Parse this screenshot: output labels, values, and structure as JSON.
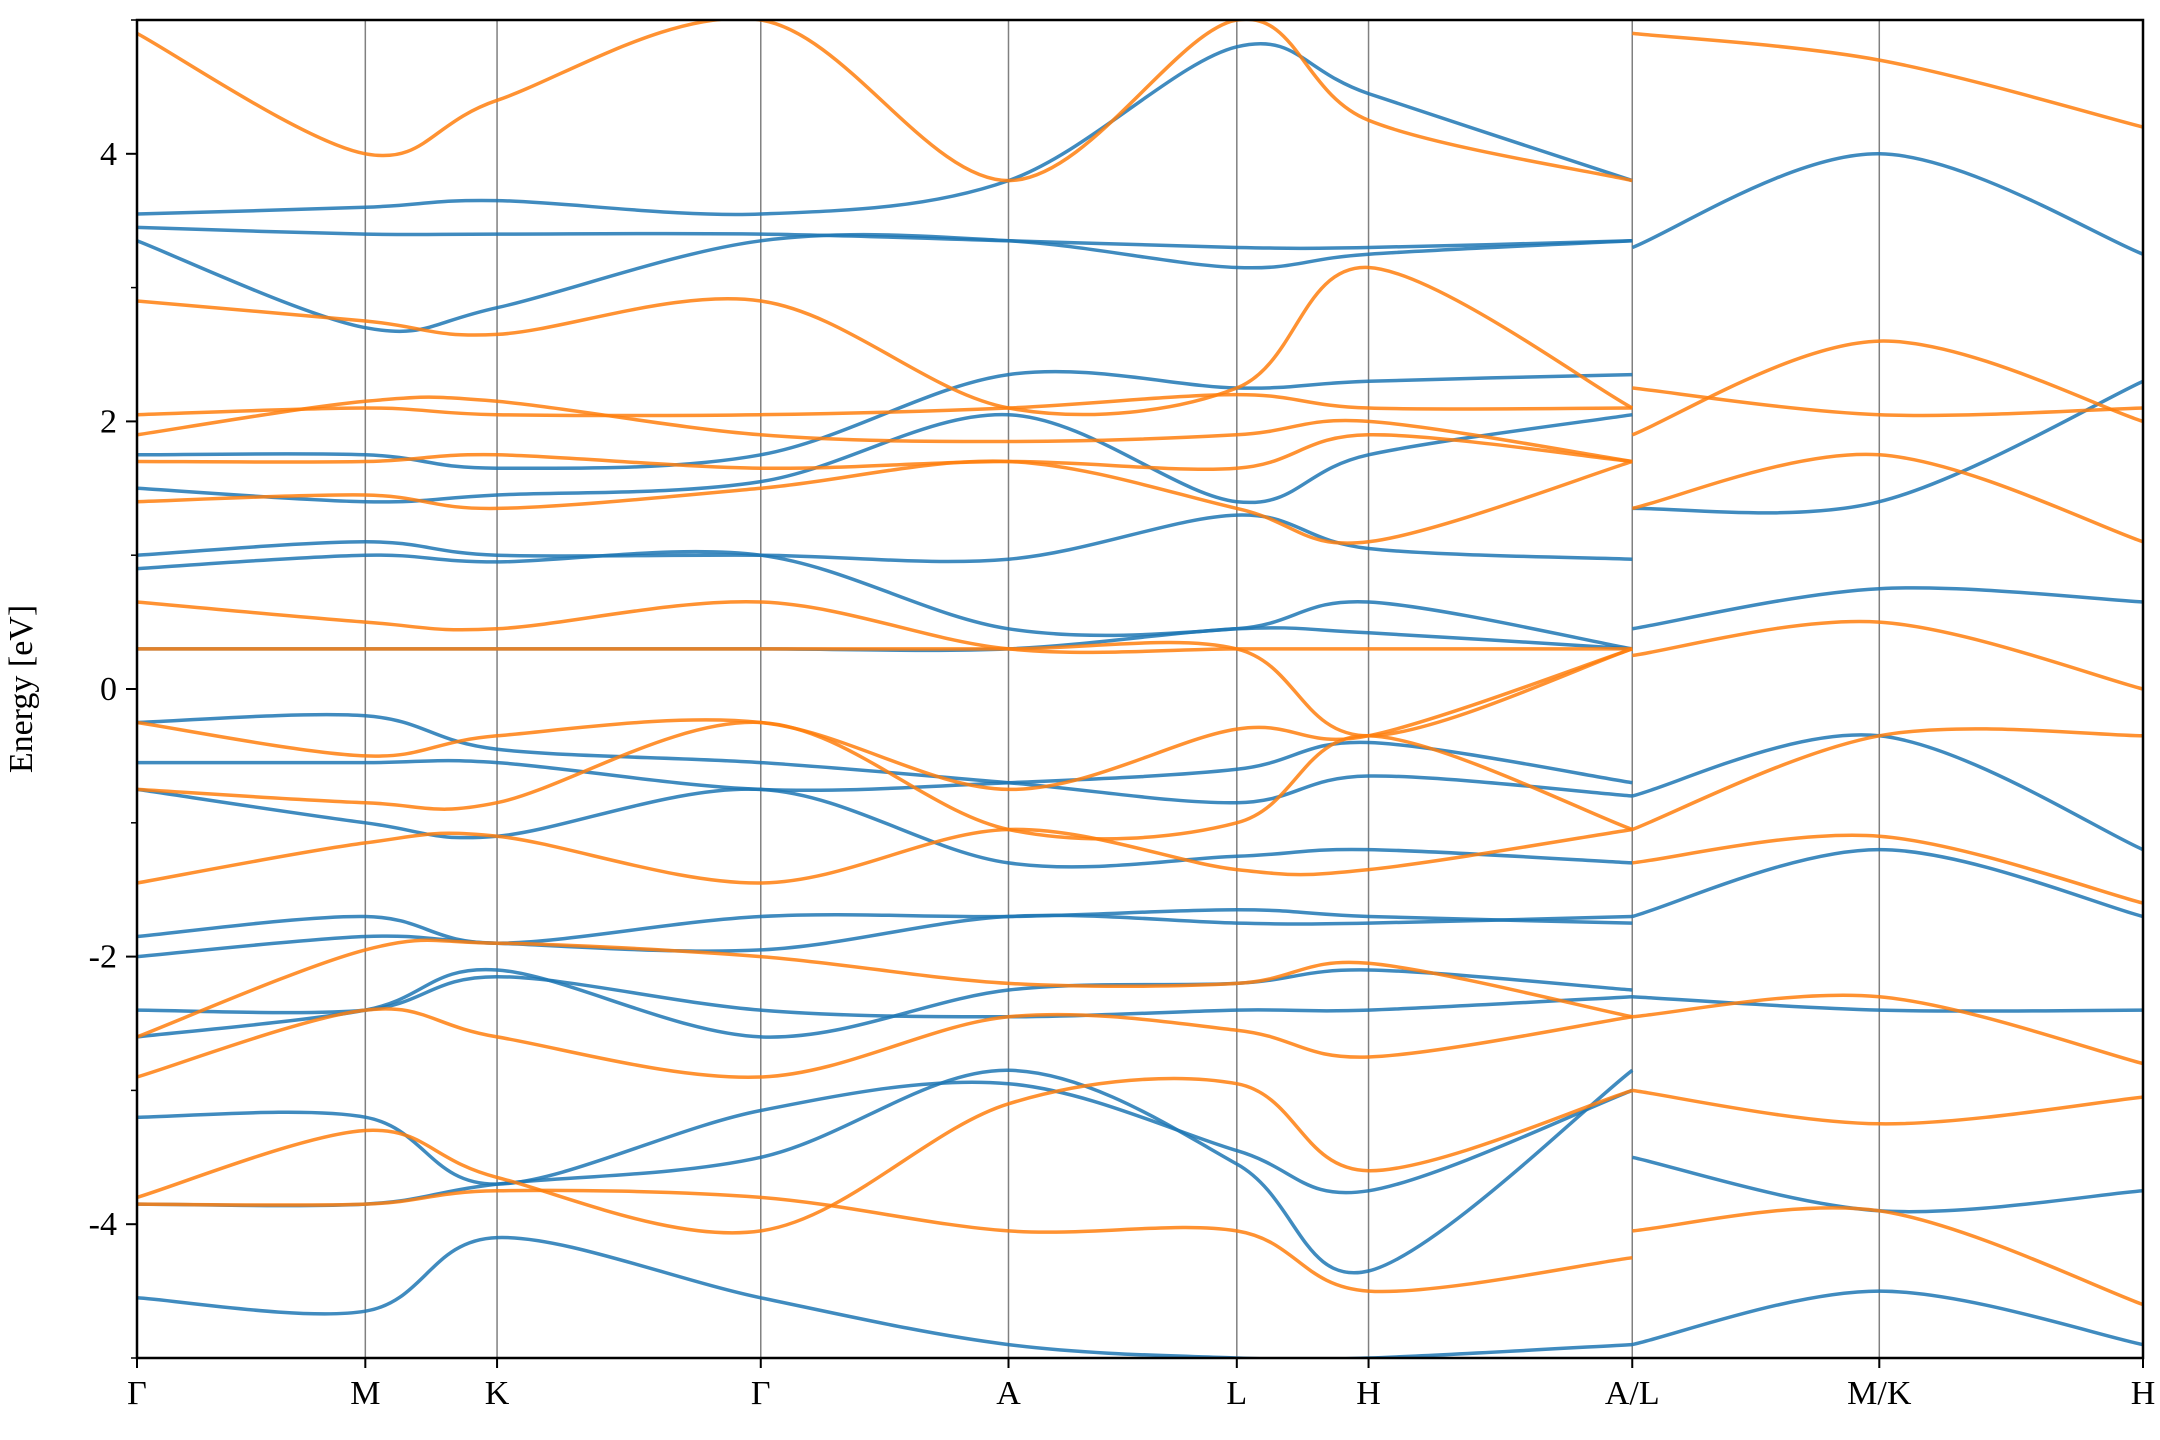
{
  "chart_data": {
    "type": "line",
    "title": "",
    "xlabel": "",
    "ylabel": "Energy [eV]",
    "ylim": [
      -5,
      5
    ],
    "y_ticks": [
      -4,
      -2,
      0,
      2,
      4
    ],
    "y_tick_labels": [
      "-4",
      "-2",
      "0",
      "2",
      "4"
    ],
    "x_ticks": [
      0,
      1,
      1.577,
      2.732,
      3.817,
      4.817,
      5.394,
      6.549,
      7.631,
      8.786
    ],
    "x_tick_labels": [
      "Γ",
      "M",
      "K",
      "Γ",
      "A",
      "L",
      "H",
      "A/L",
      "M/K",
      "H"
    ],
    "xlim": [
      0,
      8.786
    ],
    "grid": "vertical lines at high-symmetry points",
    "legend": "none",
    "colors": {
      "series_a": "#1f77b4",
      "series_b": "#ff7f0e",
      "axis": "#000000",
      "kpoint_line": "#808080"
    },
    "segments": [
      {
        "from": "Γ",
        "to": "M",
        "x_range": [
          0,
          1
        ]
      },
      {
        "from": "M",
        "to": "K",
        "x_range": [
          1,
          1.577
        ]
      },
      {
        "from": "K",
        "to": "Γ",
        "x_range": [
          1.577,
          2.732
        ]
      },
      {
        "from": "Γ",
        "to": "A",
        "x_range": [
          2.732,
          3.817
        ]
      },
      {
        "from": "A",
        "to": "L",
        "x_range": [
          3.817,
          4.817
        ]
      },
      {
        "from": "L",
        "to": "H",
        "x_range": [
          4.817,
          5.394
        ]
      },
      {
        "from": "H",
        "to": "A",
        "x_range": [
          5.394,
          6.549
        ]
      },
      {
        "from": "L",
        "to": "M",
        "x_range": [
          6.549,
          7.631
        ]
      },
      {
        "from": "K",
        "to": "H",
        "x_range": [
          7.631,
          8.786
        ]
      }
    ],
    "series": [
      {
        "color": "#1f77b4",
        "bands": [
          {
            "x": [
              0,
              1,
              1.577,
              2.732,
              3.817,
              4.817,
              5.394,
              6.549
            ],
            "y": [
              -4.55,
              -4.65,
              -4.1,
              -4.55,
              -4.9,
              -5.0,
              -5.0,
              -4.9
            ]
          },
          {
            "x": [
              0,
              1,
              1.577,
              2.732,
              3.817,
              4.817,
              5.394,
              6.549
            ],
            "y": [
              -3.85,
              -3.85,
              -3.7,
              -3.5,
              -2.85,
              -3.55,
              -4.35,
              -2.85
            ]
          },
          {
            "x": [
              0,
              1,
              1.577,
              2.732,
              3.817,
              4.817,
              5.394,
              6.549
            ],
            "y": [
              -3.2,
              -3.2,
              -3.7,
              -3.15,
              -2.95,
              -3.45,
              -3.75,
              -3.0
            ]
          },
          {
            "x": [
              0,
              1,
              1.577,
              2.732,
              3.817,
              4.817,
              5.394,
              6.549
            ],
            "y": [
              -2.6,
              -2.4,
              -2.1,
              -2.6,
              -2.25,
              -2.2,
              -2.1,
              -2.25
            ]
          },
          {
            "x": [
              0,
              1,
              1.577,
              2.732,
              3.817,
              4.817,
              5.394,
              6.549
            ],
            "y": [
              -2.4,
              -2.4,
              -2.15,
              -2.4,
              -2.45,
              -2.4,
              -2.4,
              -2.3
            ]
          },
          {
            "x": [
              0,
              1,
              1.577,
              2.732,
              3.817,
              4.817,
              5.394,
              6.549
            ],
            "y": [
              -2.0,
              -1.85,
              -1.9,
              -1.95,
              -1.7,
              -1.75,
              -1.75,
              -1.7
            ]
          },
          {
            "x": [
              0,
              1,
              1.577,
              2.732,
              3.817,
              4.817,
              5.394,
              6.549
            ],
            "y": [
              -1.85,
              -1.7,
              -1.9,
              -1.7,
              -1.7,
              -1.65,
              -1.7,
              -1.75
            ]
          },
          {
            "x": [
              0,
              1,
              1.577,
              2.732,
              3.817,
              4.817,
              5.394,
              6.549
            ],
            "y": [
              -0.75,
              -1.0,
              -1.1,
              -0.75,
              -1.3,
              -1.25,
              -1.2,
              -1.3
            ]
          },
          {
            "x": [
              0,
              1,
              1.577,
              2.732,
              3.817,
              4.817,
              5.394,
              6.549
            ],
            "y": [
              -0.25,
              -0.2,
              -0.45,
              -0.55,
              -0.7,
              -0.85,
              -0.65,
              -0.8
            ]
          },
          {
            "x": [
              0,
              1,
              1.577,
              2.732,
              3.817,
              4.817,
              5.394,
              6.549
            ],
            "y": [
              -0.55,
              -0.55,
              -0.55,
              -0.75,
              -0.7,
              -0.6,
              -0.4,
              -0.7
            ]
          },
          {
            "x": [
              0,
              1,
              1.577,
              2.732,
              3.817,
              4.817,
              5.394,
              6.549
            ],
            "y": [
              0.3,
              0.3,
              0.3,
              0.3,
              0.3,
              0.45,
              0.42,
              0.3
            ]
          },
          {
            "x": [
              0,
              1,
              1.577,
              2.732,
              3.817,
              4.817,
              5.394,
              6.549
            ],
            "y": [
              0.9,
              1.0,
              0.95,
              1.0,
              0.45,
              0.45,
              0.65,
              0.3
            ]
          },
          {
            "x": [
              0,
              1,
              1.577,
              2.732,
              3.817,
              4.817,
              5.394,
              6.549
            ],
            "y": [
              1.0,
              1.1,
              1.0,
              1.0,
              0.97,
              1.3,
              1.05,
              0.97
            ]
          },
          {
            "x": [
              0,
              1,
              1.577,
              2.732,
              3.817,
              4.817,
              5.394,
              6.549
            ],
            "y": [
              1.5,
              1.4,
              1.45,
              1.55,
              2.05,
              1.4,
              1.75,
              2.05
            ]
          },
          {
            "x": [
              0,
              1,
              1.577,
              2.732,
              3.817,
              4.817,
              5.394,
              6.549
            ],
            "y": [
              1.75,
              1.75,
              1.65,
              1.75,
              2.35,
              2.25,
              2.3,
              2.35
            ]
          },
          {
            "x": [
              0,
              1,
              1.577,
              2.732,
              3.817,
              4.817,
              5.394,
              6.549
            ],
            "y": [
              3.35,
              2.7,
              2.85,
              3.35,
              3.35,
              3.15,
              3.25,
              3.35
            ]
          },
          {
            "x": [
              0,
              1,
              1.577,
              2.732,
              3.817,
              4.817,
              5.394,
              6.549
            ],
            "y": [
              3.45,
              3.4,
              3.4,
              3.4,
              3.35,
              3.3,
              3.3,
              3.35
            ]
          },
          {
            "x": [
              0,
              1,
              1.577,
              2.732,
              3.817,
              4.817,
              5.394,
              6.549
            ],
            "y": [
              3.55,
              3.6,
              3.65,
              3.55,
              3.8,
              4.8,
              4.45,
              3.8
            ]
          },
          {
            "x": [
              6.549,
              7.631,
              8.786
            ],
            "y": [
              -4.9,
              -4.5,
              -4.9
            ]
          },
          {
            "x": [
              6.549,
              7.631,
              8.786
            ],
            "y": [
              -3.5,
              -3.9,
              -3.75
            ]
          },
          {
            "x": [
              6.549,
              7.631,
              8.786
            ],
            "y": [
              -2.3,
              -2.4,
              -2.4
            ]
          },
          {
            "x": [
              6.549,
              7.631,
              8.786
            ],
            "y": [
              -1.7,
              -1.2,
              -1.7
            ]
          },
          {
            "x": [
              6.549,
              7.631,
              8.786
            ],
            "y": [
              -0.8,
              -0.35,
              -1.2
            ]
          },
          {
            "x": [
              6.549,
              7.631,
              8.786
            ],
            "y": [
              0.45,
              0.75,
              0.65
            ]
          },
          {
            "x": [
              6.549,
              7.631,
              8.786
            ],
            "y": [
              1.35,
              1.4,
              2.3
            ]
          },
          {
            "x": [
              6.549,
              7.631,
              8.786
            ],
            "y": [
              3.3,
              4.0,
              3.25
            ]
          }
        ]
      },
      {
        "color": "#ff7f0e",
        "bands": [
          {
            "x": [
              0,
              1,
              1.577,
              2.732,
              3.817,
              4.817,
              5.394,
              6.549
            ],
            "y": [
              -3.85,
              -3.85,
              -3.75,
              -3.8,
              -4.05,
              -4.05,
              -4.5,
              -4.25
            ]
          },
          {
            "x": [
              0,
              1,
              1.577,
              2.732,
              3.817,
              4.817,
              5.394,
              6.549
            ],
            "y": [
              -3.8,
              -3.3,
              -3.65,
              -4.05,
              -3.1,
              -2.95,
              -3.6,
              -3.0
            ]
          },
          {
            "x": [
              0,
              1,
              1.577,
              2.732,
              3.817,
              4.817,
              5.394,
              6.549
            ],
            "y": [
              -2.9,
              -2.4,
              -2.6,
              -2.9,
              -2.45,
              -2.55,
              -2.75,
              -2.45
            ]
          },
          {
            "x": [
              0,
              1,
              1.577,
              2.732,
              3.817,
              4.817,
              5.394,
              6.549
            ],
            "y": [
              -2.6,
              -1.95,
              -1.9,
              -2.0,
              -2.2,
              -2.2,
              -2.05,
              -2.45
            ]
          },
          {
            "x": [
              0,
              1,
              1.577,
              2.732,
              3.817,
              4.817,
              5.394,
              6.549
            ],
            "y": [
              -1.45,
              -1.15,
              -1.1,
              -1.45,
              -1.05,
              -1.35,
              -1.35,
              -1.05
            ]
          },
          {
            "x": [
              0,
              1,
              1.577,
              2.732,
              3.817,
              4.817,
              5.394,
              6.549
            ],
            "y": [
              -0.75,
              -0.85,
              -0.85,
              -0.25,
              -1.05,
              -1.0,
              -0.35,
              -1.05
            ]
          },
          {
            "x": [
              0,
              1,
              1.577,
              2.732,
              3.817,
              4.817,
              5.394,
              6.549
            ],
            "y": [
              -0.25,
              -0.5,
              -0.35,
              -0.25,
              -0.75,
              -0.3,
              -0.35,
              0.3
            ]
          },
          {
            "x": [
              0,
              1,
              1.577,
              2.732,
              3.817,
              4.817,
              5.394,
              6.549
            ],
            "y": [
              0.3,
              0.3,
              0.3,
              0.3,
              0.3,
              0.3,
              -0.35,
              0.3
            ]
          },
          {
            "x": [
              0,
              1,
              1.577,
              2.732,
              3.817,
              4.817,
              5.394,
              6.549
            ],
            "y": [
              0.65,
              0.5,
              0.45,
              0.65,
              0.3,
              0.3,
              0.3,
              0.3
            ]
          },
          {
            "x": [
              0,
              1,
              1.577,
              2.732,
              3.817,
              4.817,
              5.394,
              6.549
            ],
            "y": [
              1.4,
              1.45,
              1.35,
              1.5,
              1.7,
              1.35,
              1.1,
              1.7
            ]
          },
          {
            "x": [
              0,
              1,
              1.577,
              2.732,
              3.817,
              4.817,
              5.394,
              6.549
            ],
            "y": [
              1.7,
              1.7,
              1.75,
              1.65,
              1.7,
              1.65,
              1.9,
              1.7
            ]
          },
          {
            "x": [
              0,
              1,
              1.577,
              2.732,
              3.817,
              4.817,
              5.394,
              6.549
            ],
            "y": [
              1.9,
              2.15,
              2.15,
              1.9,
              1.85,
              1.9,
              2.0,
              1.7
            ]
          },
          {
            "x": [
              0,
              1,
              1.577,
              2.732,
              3.817,
              4.817,
              5.394,
              6.549
            ],
            "y": [
              2.05,
              2.1,
              2.05,
              2.05,
              2.1,
              2.2,
              2.1,
              2.1
            ]
          },
          {
            "x": [
              0,
              1,
              1.577,
              2.732,
              3.817,
              4.817,
              5.394,
              6.549
            ],
            "y": [
              2.9,
              2.75,
              2.65,
              2.9,
              2.1,
              2.25,
              3.15,
              2.1
            ]
          },
          {
            "x": [
              0,
              1,
              1.577,
              2.732,
              3.817,
              4.817,
              5.394,
              6.549
            ],
            "y": [
              4.9,
              4.0,
              4.4,
              5.0,
              3.8,
              5.0,
              4.25,
              3.8
            ]
          },
          {
            "x": [
              6.549,
              7.631,
              8.786
            ],
            "y": [
              -4.05,
              -3.9,
              -4.6
            ]
          },
          {
            "x": [
              6.549,
              7.631,
              8.786
            ],
            "y": [
              -3.0,
              -3.25,
              -3.05
            ]
          },
          {
            "x": [
              6.549,
              7.631,
              8.786
            ],
            "y": [
              -2.45,
              -2.3,
              -2.8
            ]
          },
          {
            "x": [
              6.549,
              7.631,
              8.786
            ],
            "y": [
              -1.3,
              -1.1,
              -1.6
            ]
          },
          {
            "x": [
              6.549,
              7.631,
              8.786
            ],
            "y": [
              -1.05,
              -0.35,
              -0.35
            ]
          },
          {
            "x": [
              6.549,
              7.631,
              8.786
            ],
            "y": [
              0.25,
              0.5,
              0.0
            ]
          },
          {
            "x": [
              6.549,
              7.631,
              8.786
            ],
            "y": [
              1.35,
              1.75,
              1.1
            ]
          },
          {
            "x": [
              6.549,
              7.631,
              8.786
            ],
            "y": [
              1.9,
              2.6,
              2.0
            ]
          },
          {
            "x": [
              6.549,
              7.631,
              8.786
            ],
            "y": [
              2.25,
              2.05,
              2.1
            ]
          },
          {
            "x": [
              6.549,
              7.631,
              8.786
            ],
            "y": [
              4.9,
              4.7,
              4.2
            ]
          }
        ]
      }
    ]
  }
}
